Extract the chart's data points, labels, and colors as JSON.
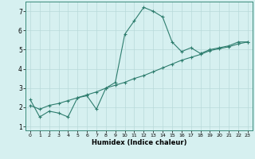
{
  "xlabel": "Humidex (Indice chaleur)",
  "background_color": "#d6f0f0",
  "grid_color": "#b8dada",
  "line_color": "#2e7d6e",
  "xlim": [
    -0.5,
    23.5
  ],
  "ylim": [
    0.8,
    7.5
  ],
  "xticks": [
    0,
    1,
    2,
    3,
    4,
    5,
    6,
    7,
    8,
    9,
    10,
    11,
    12,
    13,
    14,
    15,
    16,
    17,
    18,
    19,
    20,
    21,
    22,
    23
  ],
  "yticks": [
    1,
    2,
    3,
    4,
    5,
    6,
    7
  ],
  "curve1_x": [
    0,
    1,
    2,
    3,
    4,
    5,
    6,
    7,
    8,
    9,
    10,
    11,
    12,
    13,
    14,
    15,
    16,
    17,
    18,
    19,
    20,
    21,
    22,
    23
  ],
  "curve1_y": [
    2.4,
    1.5,
    1.8,
    1.7,
    1.5,
    2.5,
    2.6,
    1.9,
    3.0,
    3.3,
    5.8,
    6.5,
    7.2,
    7.0,
    6.7,
    5.4,
    4.9,
    5.1,
    4.8,
    5.0,
    5.1,
    5.2,
    5.4,
    5.4
  ],
  "curve2_x": [
    0,
    1,
    2,
    3,
    4,
    5,
    6,
    7,
    8,
    9,
    10,
    11,
    12,
    13,
    14,
    15,
    16,
    17,
    18,
    19,
    20,
    21,
    22,
    23
  ],
  "curve2_y": [
    2.1,
    1.9,
    2.1,
    2.2,
    2.35,
    2.5,
    2.65,
    2.8,
    3.0,
    3.15,
    3.3,
    3.5,
    3.65,
    3.85,
    4.05,
    4.25,
    4.45,
    4.6,
    4.75,
    4.95,
    5.05,
    5.15,
    5.3,
    5.4
  ]
}
